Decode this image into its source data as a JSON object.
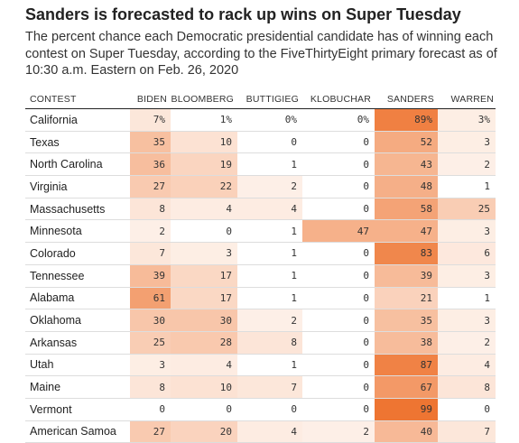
{
  "header": {
    "title": "Sanders is forecasted to rack up wins on Super Tuesday",
    "subtitle": "The percent chance each Democratic presidential candidate has of winning each contest on Super Tuesday, according to the FiveThirtyEight primary forecast as of 10:30 a.m. Eastern on Feb. 26, 2020"
  },
  "colors": {
    "scale_low": "#fef4ee",
    "scale_high": "#ee7430"
  },
  "chart_data": {
    "type": "heatmap",
    "title": "Sanders is forecasted to rack up wins on Super Tuesday",
    "row_header": "CONTEST",
    "columns": [
      "BIDEN",
      "BLOOMBERG",
      "BUTTIGIEG",
      "KLOBUCHAR",
      "SANDERS",
      "WARREN"
    ],
    "rows": [
      {
        "contest": "California",
        "values": [
          7,
          1,
          0,
          0,
          89,
          3
        ],
        "labels": [
          "7%",
          "1%",
          "0%",
          "0%",
          "89%",
          "3%"
        ]
      },
      {
        "contest": "Texas",
        "values": [
          35,
          10,
          0,
          0,
          52,
          3
        ]
      },
      {
        "contest": "North Carolina",
        "values": [
          36,
          19,
          1,
          0,
          43,
          2
        ]
      },
      {
        "contest": "Virginia",
        "values": [
          27,
          22,
          2,
          0,
          48,
          1
        ]
      },
      {
        "contest": "Massachusetts",
        "values": [
          8,
          4,
          4,
          0,
          58,
          25
        ]
      },
      {
        "contest": "Minnesota",
        "values": [
          2,
          0,
          1,
          47,
          47,
          3
        ]
      },
      {
        "contest": "Colorado",
        "values": [
          7,
          3,
          1,
          0,
          83,
          6
        ]
      },
      {
        "contest": "Tennessee",
        "values": [
          39,
          17,
          1,
          0,
          39,
          3
        ]
      },
      {
        "contest": "Alabama",
        "values": [
          61,
          17,
          1,
          0,
          21,
          1
        ]
      },
      {
        "contest": "Oklahoma",
        "values": [
          30,
          30,
          2,
          0,
          35,
          3
        ]
      },
      {
        "contest": "Arkansas",
        "values": [
          25,
          28,
          8,
          0,
          38,
          2
        ]
      },
      {
        "contest": "Utah",
        "values": [
          3,
          4,
          1,
          0,
          87,
          4
        ]
      },
      {
        "contest": "Maine",
        "values": [
          8,
          10,
          7,
          0,
          67,
          8
        ]
      },
      {
        "contest": "Vermont",
        "values": [
          0,
          0,
          0,
          0,
          99,
          0
        ]
      },
      {
        "contest": "American Samoa",
        "values": [
          27,
          20,
          4,
          2,
          40,
          7
        ]
      }
    ]
  }
}
